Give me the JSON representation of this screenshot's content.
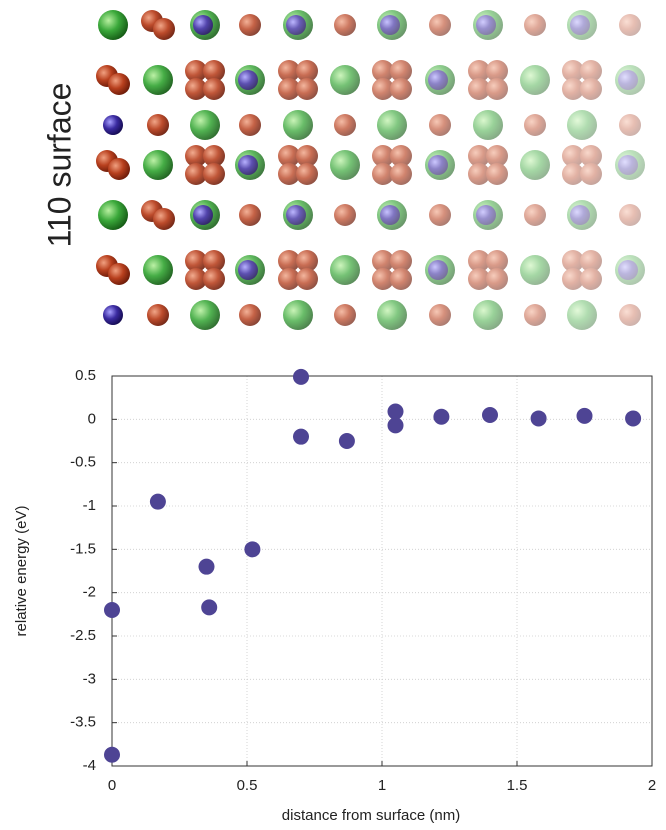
{
  "chart_data": {
    "type": "scatter",
    "annotation": "110 surface",
    "x_label": "distance from surface (nm)",
    "y_label": "relative energy (eV)",
    "color": "#4e4494",
    "x": [
      0,
      0,
      0.17,
      0.35,
      0.36,
      0.52,
      0.7,
      0.7,
      0.87,
      1.05,
      1.05,
      1.22,
      1.4,
      1.58,
      1.75,
      1.93
    ],
    "values": [
      -2.2,
      -3.87,
      -0.95,
      -1.7,
      -2.17,
      -1.5,
      0.49,
      -0.2,
      -0.25,
      0.09,
      -0.07,
      0.03,
      0.05,
      0.01,
      0.04,
      0.01
    ],
    "xlim": [
      0,
      2
    ],
    "xticks": [
      0,
      0.5,
      1,
      1.5,
      2
    ],
    "ylim": [
      -4,
      0.5
    ],
    "yticks": [
      0.5,
      0,
      -0.5,
      -1,
      -1.5,
      -2,
      -2.5,
      -3,
      -3.5,
      -4
    ],
    "grid": true
  }
}
